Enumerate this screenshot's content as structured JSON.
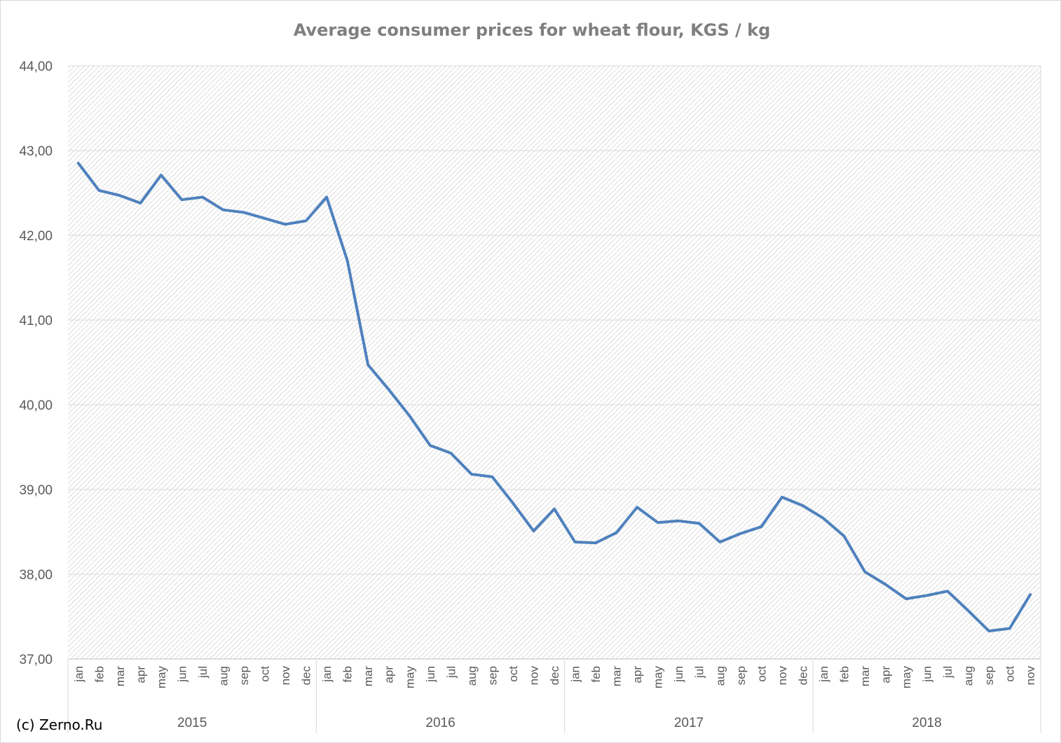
{
  "chart_data": {
    "type": "line",
    "title": "Average consumer prices for wheat flour, KGS / kg",
    "xlabel": "",
    "ylabel": "",
    "ylim": [
      37,
      44
    ],
    "yticks": [
      "37,00",
      "38,00",
      "39,00",
      "40,00",
      "41,00",
      "42,00",
      "43,00",
      "44,00"
    ],
    "grid": true,
    "legend": "none",
    "line_color": "#4f81bd",
    "categories": [
      "jan",
      "feb",
      "mar",
      "apr",
      "may",
      "jun",
      "jul",
      "aug",
      "sep",
      "oct",
      "nov",
      "dec",
      "jan",
      "feb",
      "mar",
      "apr",
      "may",
      "jun",
      "jul",
      "aug",
      "sep",
      "oct",
      "nov",
      "dec",
      "jan",
      "feb",
      "mar",
      "apr",
      "may",
      "jun",
      "jul",
      "aug",
      "sep",
      "oct",
      "nov",
      "dec",
      "jan",
      "feb",
      "mar",
      "apr",
      "may",
      "jun",
      "jul",
      "aug",
      "sep",
      "oct",
      "nov"
    ],
    "groups": [
      {
        "label": "2015",
        "count": 12
      },
      {
        "label": "2016",
        "count": 12
      },
      {
        "label": "2017",
        "count": 12
      },
      {
        "label": "2018",
        "count": 11
      }
    ],
    "values": [
      42.85,
      42.53,
      42.47,
      42.38,
      42.71,
      42.42,
      42.45,
      42.3,
      42.27,
      42.2,
      42.13,
      42.17,
      42.45,
      41.7,
      40.47,
      40.18,
      39.87,
      39.52,
      39.43,
      39.18,
      39.15,
      38.84,
      38.51,
      38.77,
      38.38,
      38.37,
      38.49,
      38.79,
      38.61,
      38.63,
      38.6,
      38.38,
      38.48,
      38.56,
      38.91,
      38.81,
      38.66,
      38.45,
      38.03,
      37.88,
      37.71,
      37.75,
      37.8,
      37.57,
      37.33,
      37.36,
      37.76
    ]
  },
  "footer": {
    "credit": "(c) Zerno.Ru"
  }
}
